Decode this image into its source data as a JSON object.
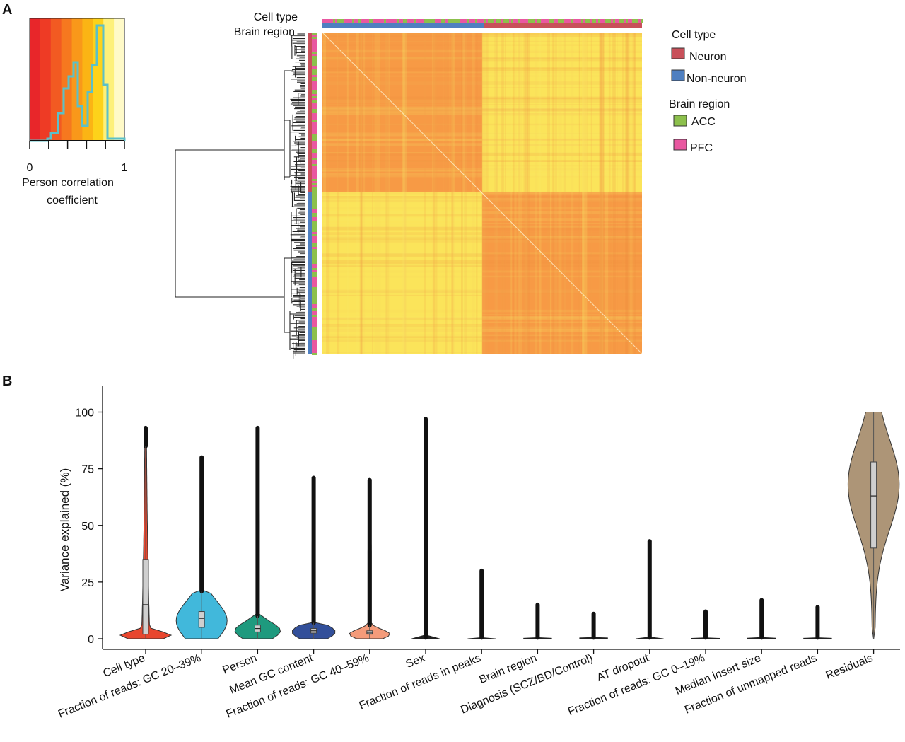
{
  "panel_a": {
    "label": "A",
    "key": {
      "tick_labels": [
        "0",
        "1"
      ],
      "xlabel_line1": "Person correlation",
      "xlabel_line2": "coefficient",
      "xlim": [
        0,
        1
      ],
      "color_bands": [
        "#e8262a",
        "#ee3b25",
        "#f25a22",
        "#f6781f",
        "#f9981a",
        "#fbb414",
        "#fdd21a",
        "#fdf07a",
        "#fffac8"
      ],
      "histogram_color": "#5bc0c8"
    },
    "heatmap": {
      "annotation_labels": [
        "Cell type",
        "Brain region"
      ],
      "blocks": [
        "Neuron",
        "Non-neuron"
      ],
      "block_fractions": [
        0.5,
        0.5
      ],
      "within_block_color": "#f79a45",
      "between_block_color": "#fbe45a",
      "neuron_non_neuron_color": "#f7c550"
    },
    "legend": {
      "cell_type_title": "Cell type",
      "cell_type_items": [
        {
          "label": "Neuron",
          "color": "#c8505a"
        },
        {
          "label": "Non-neuron",
          "color": "#4f7fc0"
        }
      ],
      "brain_region_title": "Brain region",
      "brain_region_items": [
        {
          "label": "ACC",
          "color": "#8cc04c"
        },
        {
          "label": "PFC",
          "color": "#e957a0"
        }
      ]
    }
  },
  "panel_b": {
    "label": "B",
    "ylabel": "Variance explained (%)",
    "ylim": [
      0,
      100
    ],
    "yticks": [
      0,
      25,
      50,
      75,
      100
    ]
  },
  "chart_data": {
    "type": "violin",
    "title": "",
    "xlabel": "",
    "ylabel": "Variance explained (%)",
    "ylim": [
      0,
      100
    ],
    "categories": [
      {
        "label": "Cell type",
        "color": "#e8462e",
        "max": 93,
        "q1": 2,
        "median": 15,
        "q3": 35,
        "whisker_hi": 85,
        "mode": 1.5,
        "width": 1.0
      },
      {
        "label": "Fraction of reads: GC 20–39%",
        "color": "#41b8db",
        "max": 80,
        "q1": 5,
        "median": 9,
        "q3": 12,
        "whisker_hi": 21,
        "mode": 8,
        "width": 1.0
      },
      {
        "label": "Person",
        "color": "#1e9a7e",
        "max": 93,
        "q1": 3,
        "median": 4.5,
        "q3": 6,
        "whisker_hi": 10,
        "mode": 3.5,
        "width": 0.9
      },
      {
        "label": "Mean GC content",
        "color": "#324f9a",
        "max": 71,
        "q1": 2.5,
        "median": 3.5,
        "q3": 4.5,
        "whisker_hi": 7,
        "mode": 3,
        "width": 0.85
      },
      {
        "label": "Fraction of reads: GC 40–59%",
        "color": "#f49b7a",
        "max": 70,
        "q1": 2,
        "median": 2.5,
        "q3": 3.5,
        "whisker_hi": 6,
        "mode": 2,
        "width": 0.8
      },
      {
        "label": "Sex",
        "color": "#222222",
        "max": 97,
        "q1": 0,
        "median": 0,
        "q3": 0,
        "whisker_hi": 0,
        "mode": 0,
        "width": 0.55
      },
      {
        "label": "Fraction of reads in peaks",
        "color": "#222222",
        "max": 30,
        "q1": 0,
        "median": 0,
        "q3": 0,
        "whisker_hi": 0,
        "mode": 0,
        "width": 0.55
      },
      {
        "label": "Brain region",
        "color": "#222222",
        "max": 15,
        "q1": 0,
        "median": 0,
        "q3": 0,
        "whisker_hi": 0,
        "mode": 0,
        "width": 0.55
      },
      {
        "label": "Diagnosis (SCZ/BD/Control)",
        "color": "#222222",
        "max": 11,
        "q1": 0,
        "median": 0,
        "q3": 0,
        "whisker_hi": 0,
        "mode": 0,
        "width": 0.55
      },
      {
        "label": "AT dropout",
        "color": "#222222",
        "max": 43,
        "q1": 0,
        "median": 0,
        "q3": 0,
        "whisker_hi": 0,
        "mode": 0,
        "width": 0.55
      },
      {
        "label": "Fraction of reads: GC 0–19%",
        "color": "#222222",
        "max": 12,
        "q1": 0,
        "median": 0,
        "q3": 0,
        "whisker_hi": 0,
        "mode": 0,
        "width": 0.55
      },
      {
        "label": "Median insert size",
        "color": "#222222",
        "max": 17,
        "q1": 0,
        "median": 0,
        "q3": 0,
        "whisker_hi": 0,
        "mode": 0,
        "width": 0.55
      },
      {
        "label": "Fraction of unmapped reads",
        "color": "#222222",
        "max": 14,
        "q1": 0,
        "median": 0,
        "q3": 0,
        "whisker_hi": 0,
        "mode": 0,
        "width": 0.55
      },
      {
        "label": "Residuals",
        "color": "#ad9577",
        "max": 100,
        "q1": 40,
        "median": 63,
        "q3": 78,
        "whisker_hi": 100,
        "mode": 68,
        "width": 1.0
      }
    ]
  }
}
